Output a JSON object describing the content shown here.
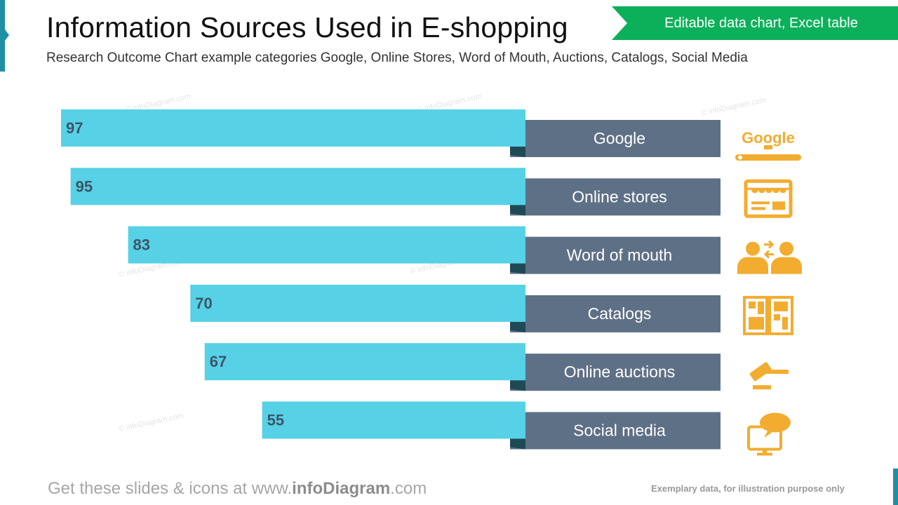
{
  "header": {
    "title": "Information Sources Used in E-shopping",
    "subtitle": "Research Outcome Chart  example categories Google, Online Stores, Word of Mouth, Auctions, Catalogs, Social Media",
    "badge": "Editable data chart, Excel table"
  },
  "footer": {
    "prefix": "Get these slides & icons at www.",
    "brand": "infoDiagram",
    "suffix": ".com",
    "disclaimer": "Exemplary data, for illustration purpose only"
  },
  "watermark": "© infoDiagram.com",
  "colors": {
    "bar": "#56d1e6",
    "label_bg": "#5e7085",
    "fold": "#1f4a55",
    "value_text": "#3e5567",
    "icon": "#f2ac30",
    "badge": "#0db05a",
    "accent": "#1f8fa6"
  },
  "chart_data": {
    "type": "bar",
    "orientation": "horizontal",
    "direction": "leftward",
    "categories": [
      "Google",
      "Online stores",
      "Word of mouth",
      "Catalogs",
      "Online auctions",
      "Social media"
    ],
    "values": [
      97,
      95,
      83,
      70,
      67,
      55
    ],
    "icons": [
      "google-search-icon",
      "online-store-icon",
      "word-of-mouth-icon",
      "catalog-icon",
      "auction-gavel-icon",
      "social-media-icon"
    ],
    "xlim": [
      0,
      100
    ],
    "data_labels": true,
    "grid": false,
    "legend": "none",
    "title": "",
    "xlabel": "",
    "ylabel": ""
  }
}
